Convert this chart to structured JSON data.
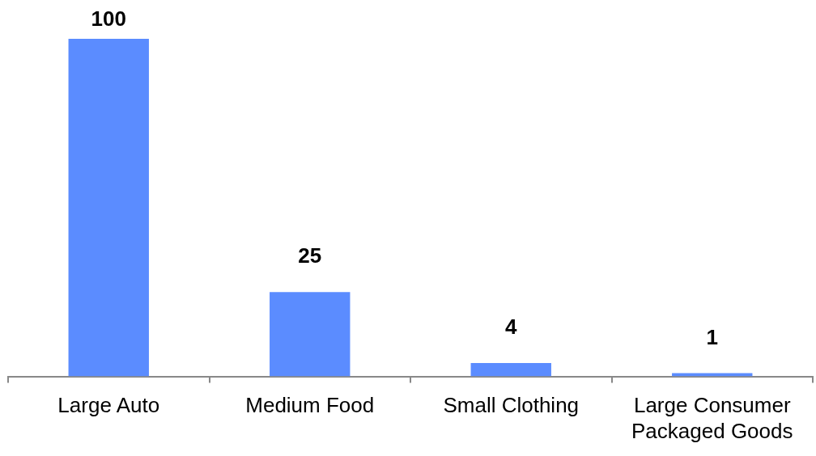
{
  "chart_data": {
    "type": "bar",
    "categories": [
      "Large Auto",
      "Medium Food",
      "Small Clothing",
      "Large Consumer Packaged Goods"
    ],
    "values": [
      100,
      25,
      4,
      1
    ],
    "color": "#5b8cff",
    "data_labels": true,
    "grid": false,
    "legend": false
  }
}
